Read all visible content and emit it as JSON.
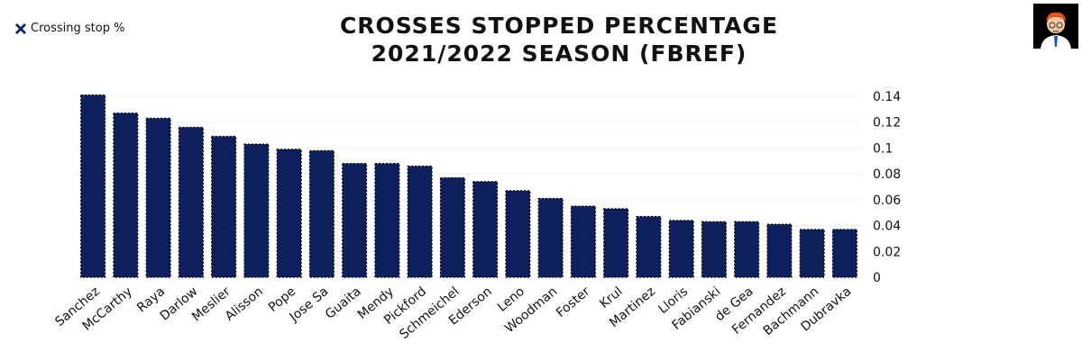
{
  "chart_data": {
    "type": "bar",
    "title": "CROSSES STOPPED PERCENTAGE",
    "subtitle": "2021/2022 SEASON (FBREF)",
    "legend": {
      "position": "top-left",
      "entries": [
        "Crossing stop %"
      ]
    },
    "categories": [
      "Sanchez",
      "McCarthy",
      "Raya",
      "Darlow",
      "Meslier",
      "Alisson",
      "Pope",
      "Jose Sa",
      "Guaita",
      "Mendy",
      "Pickford",
      "Schmeichel",
      "Ederson",
      "Leno",
      "Woodman",
      "Foster",
      "Krul",
      "Martinez",
      "Lloris",
      "Fabianski",
      "de Gea",
      "Fernandez",
      "Bachmann",
      "Dubravka"
    ],
    "series": [
      {
        "name": "Crossing stop %",
        "values": [
          0.141,
          0.127,
          0.123,
          0.116,
          0.109,
          0.103,
          0.099,
          0.098,
          0.088,
          0.088,
          0.086,
          0.077,
          0.074,
          0.067,
          0.061,
          0.055,
          0.053,
          0.047,
          0.044,
          0.043,
          0.043,
          0.041,
          0.037,
          0.037
        ]
      }
    ],
    "y_ticks": [
      "0",
      "0.02",
      "0.04",
      "0.06",
      "0.08",
      "0.1",
      "0.12",
      "0.14"
    ],
    "ylim": [
      0,
      0.14
    ],
    "y_axis_side": "right",
    "xlabel": "",
    "ylabel": "",
    "grid": true,
    "colors": {
      "bar": "#0d1f5c",
      "grid": "#eeeeee",
      "text": "#111111"
    }
  },
  "icons": {
    "legend_marker": "cross-marker-icon",
    "logo": "cartoon-avatar-icon"
  }
}
